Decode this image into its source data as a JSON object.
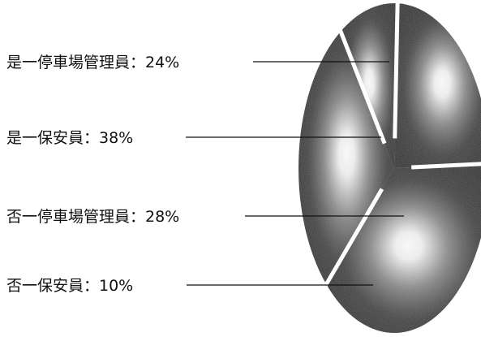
{
  "chart_data": {
    "type": "pie",
    "title": "",
    "series": [
      {
        "name": "",
        "values": [
          {
            "label": "是一停車場管理員：24%",
            "value": 24
          },
          {
            "label": "是一保安員：38%",
            "value": 38
          },
          {
            "label": "否一停車場管理員：28%",
            "value": 28
          },
          {
            "label": "否一保安員：10%",
            "value": 10
          }
        ]
      }
    ],
    "unit": "%",
    "legend": "none",
    "grid": false
  },
  "colors": {
    "background": "#ffffff",
    "slice_dark": "#111111",
    "slice_highlight": "#ffffff",
    "slice_gap": "#ffffff",
    "leader_line": "#111111"
  }
}
